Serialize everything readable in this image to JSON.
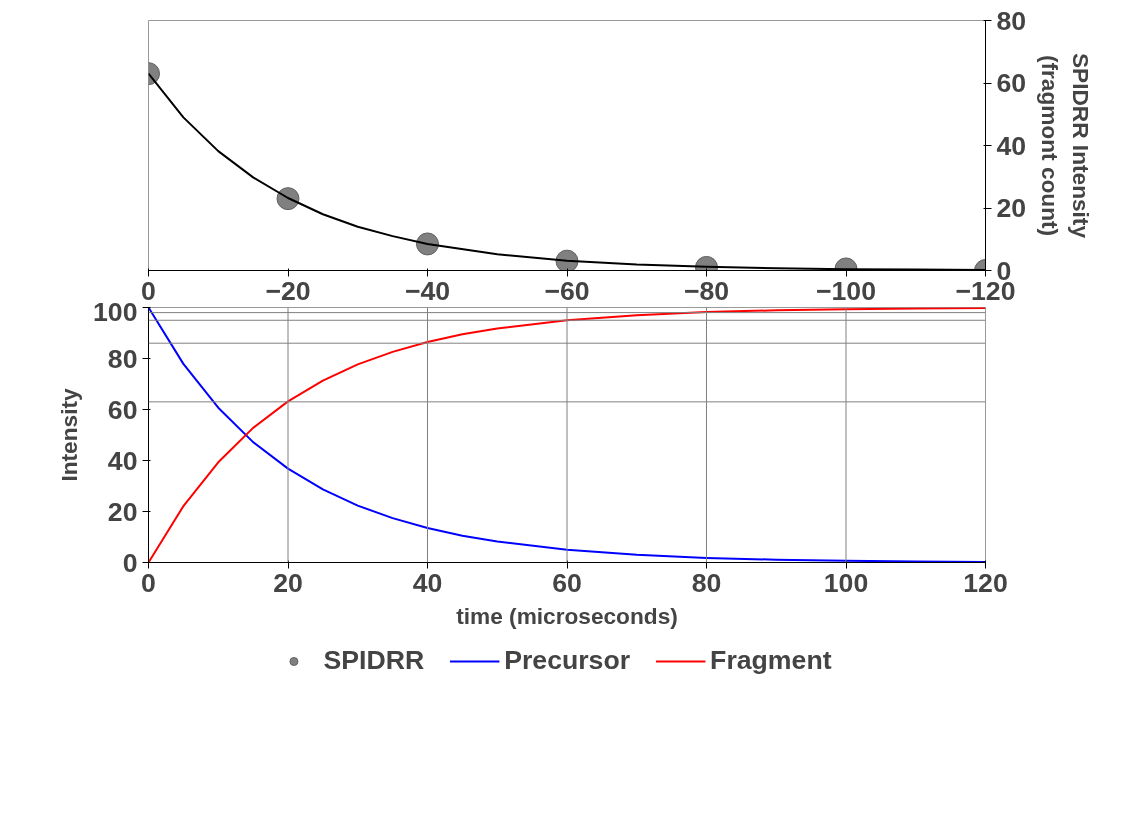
{
  "chart_data": [
    {
      "type": "scatter",
      "ylabel": "SPIDRR Intensity\n(fragmont count)",
      "xlim": [
        0,
        -120
      ],
      "xticks": [
        0,
        -20,
        -40,
        -60,
        -80,
        -100,
        -120
      ],
      "ylim": [
        0,
        80
      ],
      "yticks": [
        0,
        20,
        40,
        60,
        80
      ],
      "series": [
        {
          "name": "SPIDRR",
          "color": "#808080",
          "marker": "circle",
          "x": [
            0,
            -20,
            -40,
            -60,
            -80,
            -100,
            -120
          ],
          "values": [
            63,
            23,
            8.5,
            3,
            1,
            0.5,
            0
          ]
        },
        {
          "type": "line",
          "color": "#000000",
          "x": [
            0,
            -5,
            -10,
            -15,
            -20,
            -25,
            -30,
            -35,
            -40,
            -50,
            -60,
            -70,
            -80,
            -90,
            -100,
            -110,
            -120
          ],
          "values": [
            63,
            49,
            38.2,
            29.8,
            23.2,
            18,
            14,
            11,
            8.5,
            5.2,
            3.1,
            1.9,
            1.2,
            0.7,
            0.4,
            0.3,
            0.2
          ]
        }
      ]
    },
    {
      "type": "line",
      "xlabel": "time (microseconds)",
      "ylabel": "Intensity",
      "xlim": [
        0,
        120
      ],
      "xticks": [
        0,
        20,
        40,
        60,
        80,
        100,
        120
      ],
      "ylim": [
        0,
        100
      ],
      "yticks": [
        0,
        20,
        40,
        60,
        80,
        100
      ],
      "legend": "bottom",
      "line_style": "solid",
      "x": [
        0,
        5,
        10,
        15,
        20,
        25,
        30,
        35,
        40,
        45,
        50,
        60,
        70,
        80,
        90,
        100,
        110,
        120
      ],
      "series": [
        {
          "name": "Precursor",
          "color": "#0000ff",
          "values": [
            100,
            77.9,
            60.7,
            47.2,
            36.8,
            28.7,
            22.3,
            17.4,
            13.5,
            10.5,
            8.2,
            5,
            3,
            1.8,
            1.1,
            0.7,
            0.4,
            0.2
          ]
        },
        {
          "name": "Fragment",
          "color": "#ff0000",
          "values": [
            0,
            22.1,
            39.3,
            52.8,
            63.2,
            71.3,
            77.7,
            82.6,
            86.5,
            89.5,
            91.8,
            95,
            97,
            98.2,
            98.9,
            99.3,
            99.6,
            99.8
          ]
        }
      ],
      "ref_lines": [
        {
          "axis": "x",
          "value": 20,
          "color": "#808080"
        },
        {
          "axis": "x",
          "value": 40,
          "color": "#808080"
        },
        {
          "axis": "x",
          "value": 60,
          "color": "#808080"
        },
        {
          "axis": "x",
          "value": 80,
          "color": "#808080"
        },
        {
          "axis": "x",
          "value": 100,
          "color": "#808080"
        },
        {
          "axis": "y",
          "value": 63,
          "color": "#808080"
        },
        {
          "axis": "y",
          "value": 86,
          "color": "#808080"
        },
        {
          "axis": "y",
          "value": 95,
          "color": "#808080"
        },
        {
          "axis": "y",
          "value": 98,
          "color": "#808080"
        }
      ]
    }
  ]
}
